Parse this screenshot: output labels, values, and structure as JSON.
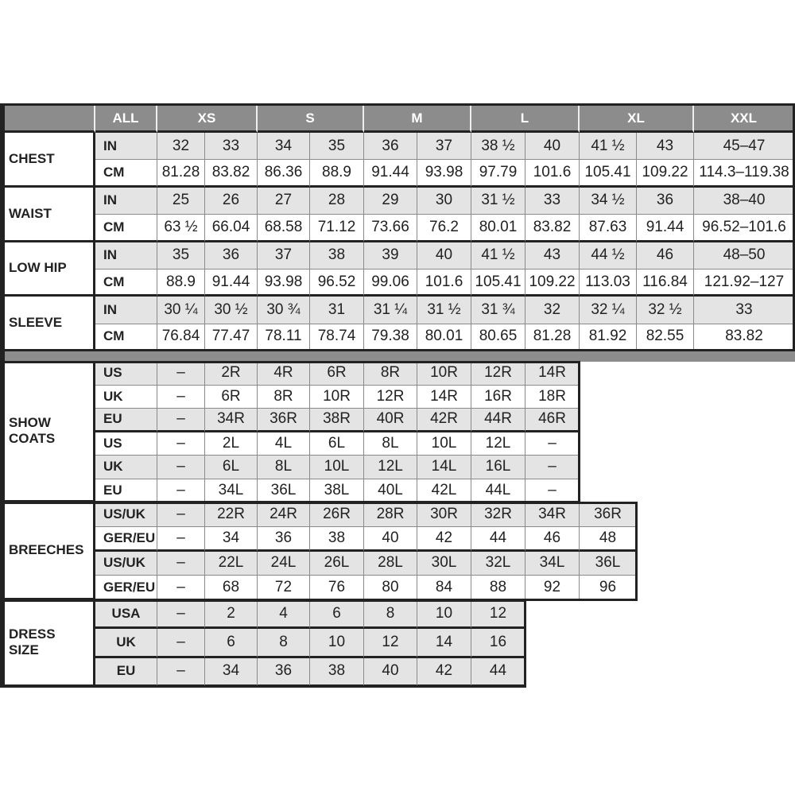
{
  "header": {
    "units_label": "ALL",
    "sizes": [
      "XS",
      "S",
      "M",
      "L",
      "XL",
      "XXL"
    ]
  },
  "measurements": [
    {
      "label": "CHEST",
      "rows": [
        {
          "unit": "IN",
          "values": [
            "32",
            "33",
            "34",
            "35",
            "36",
            "37",
            "38 ½",
            "40",
            "41 ½",
            "43",
            "45–47"
          ]
        },
        {
          "unit": "CM",
          "values": [
            "81.28",
            "83.82",
            "86.36",
            "88.9",
            "91.44",
            "93.98",
            "97.79",
            "101.6",
            "105.41",
            "109.22",
            "114.3–119.38"
          ]
        }
      ]
    },
    {
      "label": "WAIST",
      "rows": [
        {
          "unit": "IN",
          "values": [
            "25",
            "26",
            "27",
            "28",
            "29",
            "30",
            "31 ½",
            "33",
            "34 ½",
            "36",
            "38–40"
          ]
        },
        {
          "unit": "CM",
          "values": [
            "63 ½",
            "66.04",
            "68.58",
            "71.12",
            "73.66",
            "76.2",
            "80.01",
            "83.82",
            "87.63",
            "91.44",
            "96.52–101.6"
          ]
        }
      ]
    },
    {
      "label": "LOW HIP",
      "rows": [
        {
          "unit": "IN",
          "values": [
            "35",
            "36",
            "37",
            "38",
            "39",
            "40",
            "41 ½",
            "43",
            "44 ½",
            "46",
            "48–50"
          ]
        },
        {
          "unit": "CM",
          "values": [
            "88.9",
            "91.44",
            "93.98",
            "96.52",
            "99.06",
            "101.6",
            "105.41",
            "109.22",
            "113.03",
            "116.84",
            "121.92–127"
          ]
        }
      ]
    },
    {
      "label": "SLEEVE",
      "rows": [
        {
          "unit": "IN",
          "values": [
            "30 ¼",
            "30 ½",
            "30 ¾",
            "31",
            "31 ¼",
            "31 ½",
            "31 ¾",
            "32",
            "32 ¼",
            "32 ½",
            "33"
          ]
        },
        {
          "unit": "CM",
          "values": [
            "76.84",
            "77.47",
            "78.11",
            "78.74",
            "79.38",
            "80.01",
            "80.65",
            "81.28",
            "81.92",
            "82.55",
            "83.82"
          ]
        }
      ]
    }
  ],
  "conversions": [
    {
      "label": "SHOW\nCOATS",
      "rows": [
        {
          "unit": "US",
          "values": [
            "–",
            "2R",
            "4R",
            "6R",
            "8R",
            "10R",
            "12R",
            "14R"
          ]
        },
        {
          "unit": "UK",
          "values": [
            "–",
            "6R",
            "8R",
            "10R",
            "12R",
            "14R",
            "16R",
            "18R"
          ]
        },
        {
          "unit": "EU",
          "values": [
            "–",
            "34R",
            "36R",
            "38R",
            "40R",
            "42R",
            "44R",
            "46R"
          ]
        },
        {
          "unit": "US",
          "values": [
            "–",
            "2L",
            "4L",
            "6L",
            "8L",
            "10L",
            "12L",
            "–"
          ]
        },
        {
          "unit": "UK",
          "values": [
            "–",
            "6L",
            "8L",
            "10L",
            "12L",
            "14L",
            "16L",
            "–"
          ]
        },
        {
          "unit": "EU",
          "values": [
            "–",
            "34L",
            "36L",
            "38L",
            "40L",
            "42L",
            "44L",
            "–"
          ]
        }
      ]
    },
    {
      "label": "BREECHES",
      "rows": [
        {
          "unit": "US/UK",
          "values": [
            "–",
            "22R",
            "24R",
            "26R",
            "28R",
            "30R",
            "32R",
            "34R",
            "36R"
          ]
        },
        {
          "unit": "GER/EU",
          "values": [
            "–",
            "34",
            "36",
            "38",
            "40",
            "42",
            "44",
            "46",
            "48"
          ]
        },
        {
          "unit": "US/UK",
          "values": [
            "–",
            "22L",
            "24L",
            "26L",
            "28L",
            "30L",
            "32L",
            "34L",
            "36L"
          ]
        },
        {
          "unit": "GER/EU",
          "values": [
            "–",
            "68",
            "72",
            "76",
            "80",
            "84",
            "88",
            "92",
            "96"
          ]
        }
      ]
    },
    {
      "label": "DRESS\nSIZE",
      "rows": [
        {
          "unit": "USA",
          "values": [
            "–",
            "2",
            "4",
            "6",
            "8",
            "10",
            "12"
          ]
        },
        {
          "unit": "UK",
          "values": [
            "–",
            "6",
            "8",
            "10",
            "12",
            "14",
            "16"
          ]
        },
        {
          "unit": "EU",
          "values": [
            "–",
            "34",
            "36",
            "38",
            "40",
            "42",
            "44"
          ]
        }
      ]
    }
  ]
}
